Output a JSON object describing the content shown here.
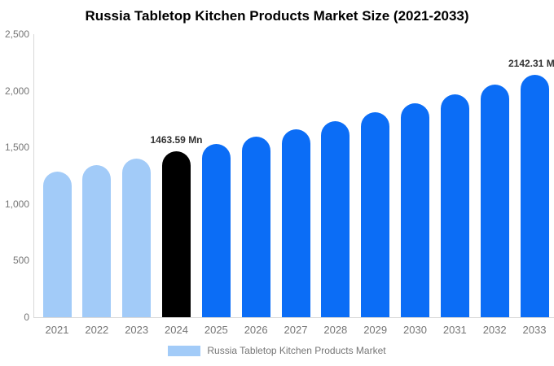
{
  "chart_data": {
    "type": "bar",
    "title": "Russia Tabletop Kitchen Products Market Size (2021-2033)",
    "unit": "Mn",
    "categories": [
      "2021",
      "2022",
      "2023",
      "2024",
      "2025",
      "2026",
      "2027",
      "2028",
      "2029",
      "2030",
      "2031",
      "2032",
      "2033"
    ],
    "values": [
      1289,
      1345,
      1403,
      1463.59,
      1527,
      1593,
      1662,
      1733,
      1808,
      1886,
      1968,
      2053,
      2142.31
    ],
    "bar_colors": [
      "#a2cbf8",
      "#a2cbf8",
      "#a2cbf8",
      "#000000",
      "#0b6df6",
      "#0b6df6",
      "#0b6df6",
      "#0b6df6",
      "#0b6df6",
      "#0b6df6",
      "#0b6df6",
      "#0b6df6",
      "#0b6df6"
    ],
    "point_labels": [
      "",
      "",
      "",
      "1463.59 Mn",
      "",
      "",
      "",
      "",
      "",
      "",
      "",
      "",
      "2142.31 Mn"
    ],
    "ylim": [
      0,
      2500
    ],
    "y_ticks": [
      {
        "value": 0,
        "label": "0"
      },
      {
        "value": 500,
        "label": "500"
      },
      {
        "value": 1000,
        "label": "1,000"
      },
      {
        "value": 1500,
        "label": "1,500"
      },
      {
        "value": 2000,
        "label": "2,000"
      },
      {
        "value": 2500,
        "label": "2,500"
      }
    ],
    "xlabel": "",
    "ylabel": "",
    "grid": false,
    "legend": {
      "position": "bottom",
      "label": "Russia Tabletop Kitchen Products Market",
      "swatch_color": "#a2cbf8"
    },
    "colors": {
      "historical_bar": "#a2cbf8",
      "base_year_bar": "#000000",
      "forecast_bar": "#0b6df6",
      "axis_line": "#d9d9d9",
      "tick_text": "#757575",
      "data_label_text": "#333333",
      "title_text": "#000000",
      "background": "#ffffff"
    }
  }
}
